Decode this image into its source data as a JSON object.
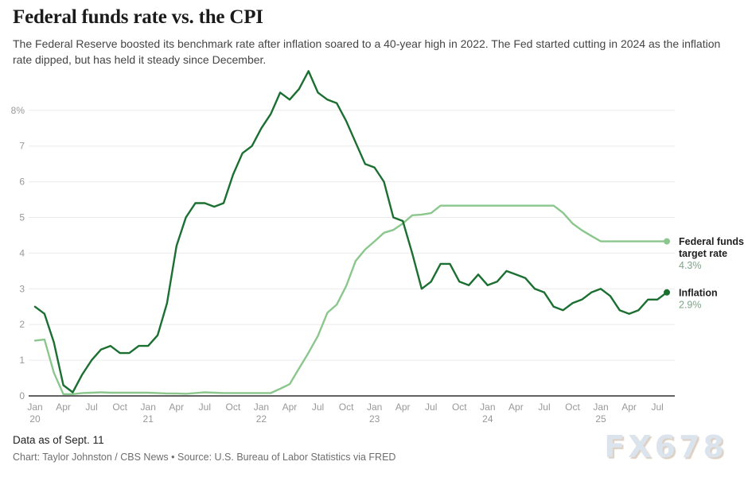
{
  "header": {
    "title": "Federal funds rate vs. the CPI",
    "subtitle": "The Federal Reserve boosted its benchmark rate after inflation soared to a 40-year high in 2022. The Fed started cutting in 2024 as the inflation rate dipped, but has held it steady since December."
  },
  "footer": {
    "data_as_of": "Data as of Sept. 11",
    "credit": "Chart: Taylor Johnston / CBS News • Source: U.S. Bureau of Labor Statistics via FRED"
  },
  "watermark": "FX678",
  "colors": {
    "fed_funds_line": "#8bc78d",
    "inflation_line": "#1b6f31",
    "value_label": "#7fa487",
    "legend_name": "#1f1f1f",
    "gridline": "#ececec",
    "axis_line": "#2e2e2e",
    "tick_label": "#989898"
  },
  "chart_data": {
    "type": "line",
    "title": "Federal funds rate vs. the CPI",
    "xlabel": "",
    "ylabel": "",
    "x_unit": "month",
    "x_range": [
      "Jan 2020",
      "Aug 2025"
    ],
    "ylim": [
      0,
      9.2
    ],
    "grid": true,
    "legend_position": "right-of-line-ends",
    "y_axis": {
      "ticks": [
        {
          "value": 0,
          "label": "0"
        },
        {
          "value": 1,
          "label": "1"
        },
        {
          "value": 2,
          "label": "2"
        },
        {
          "value": 3,
          "label": "3"
        },
        {
          "value": 4,
          "label": "4"
        },
        {
          "value": 5,
          "label": "5"
        },
        {
          "value": 6,
          "label": "6"
        },
        {
          "value": 7,
          "label": "7"
        },
        {
          "value": 8,
          "label": "8%"
        }
      ]
    },
    "x_axis": {
      "ticks": [
        {
          "index": 0,
          "month": "Jan",
          "year": "20"
        },
        {
          "index": 3,
          "month": "Apr"
        },
        {
          "index": 6,
          "month": "Jul"
        },
        {
          "index": 9,
          "month": "Oct"
        },
        {
          "index": 12,
          "month": "Jan",
          "year": "21"
        },
        {
          "index": 15,
          "month": "Apr"
        },
        {
          "index": 18,
          "month": "Jul"
        },
        {
          "index": 21,
          "month": "Oct"
        },
        {
          "index": 24,
          "month": "Jan",
          "year": "22"
        },
        {
          "index": 27,
          "month": "Apr"
        },
        {
          "index": 30,
          "month": "Jul"
        },
        {
          "index": 33,
          "month": "Oct"
        },
        {
          "index": 36,
          "month": "Jan",
          "year": "23"
        },
        {
          "index": 39,
          "month": "Apr"
        },
        {
          "index": 42,
          "month": "Jul"
        },
        {
          "index": 45,
          "month": "Oct"
        },
        {
          "index": 48,
          "month": "Jan",
          "year": "24"
        },
        {
          "index": 51,
          "month": "Apr"
        },
        {
          "index": 54,
          "month": "Jul"
        },
        {
          "index": 57,
          "month": "Oct"
        },
        {
          "index": 60,
          "month": "Jan",
          "year": "25"
        },
        {
          "index": 63,
          "month": "Apr"
        },
        {
          "index": 66,
          "month": "Jul"
        }
      ]
    },
    "series": [
      {
        "id": "fed-funds",
        "name_lines": [
          "Federal funds",
          "target rate"
        ],
        "end_value_label": "4.3%",
        "color": "#8bc78d",
        "values": [
          1.55,
          1.58,
          0.65,
          0.05,
          0.05,
          0.08,
          0.09,
          0.1,
          0.09,
          0.09,
          0.09,
          0.09,
          0.09,
          0.08,
          0.07,
          0.07,
          0.06,
          0.08,
          0.1,
          0.09,
          0.08,
          0.08,
          0.08,
          0.08,
          0.08,
          0.08,
          0.2,
          0.33,
          0.77,
          1.21,
          1.68,
          2.33,
          2.56,
          3.08,
          3.78,
          4.1,
          4.33,
          4.57,
          4.65,
          4.83,
          5.06,
          5.08,
          5.12,
          5.33,
          5.33,
          5.33,
          5.33,
          5.33,
          5.33,
          5.33,
          5.33,
          5.33,
          5.33,
          5.33,
          5.33,
          5.33,
          5.13,
          4.83,
          4.64,
          4.48,
          4.33,
          4.33,
          4.33,
          4.33,
          4.33,
          4.33,
          4.33,
          4.33
        ]
      },
      {
        "id": "inflation",
        "name_lines": [
          "Inflation"
        ],
        "end_value_label": "2.9%",
        "color": "#1b6f31",
        "values": [
          2.5,
          2.3,
          1.5,
          0.3,
          0.1,
          0.6,
          1.0,
          1.3,
          1.4,
          1.2,
          1.2,
          1.4,
          1.4,
          1.7,
          2.6,
          4.2,
          5.0,
          5.4,
          5.4,
          5.3,
          5.4,
          6.2,
          6.8,
          7.0,
          7.5,
          7.9,
          8.5,
          8.3,
          8.6,
          9.1,
          8.5,
          8.3,
          8.2,
          7.7,
          7.1,
          6.5,
          6.4,
          6.0,
          5.0,
          4.9,
          4.0,
          3.0,
          3.2,
          3.7,
          3.7,
          3.2,
          3.1,
          3.4,
          3.1,
          3.2,
          3.5,
          3.4,
          3.3,
          3.0,
          2.9,
          2.5,
          2.4,
          2.6,
          2.7,
          2.9,
          3.0,
          2.8,
          2.4,
          2.3,
          2.4,
          2.7,
          2.7,
          2.9
        ]
      }
    ]
  }
}
